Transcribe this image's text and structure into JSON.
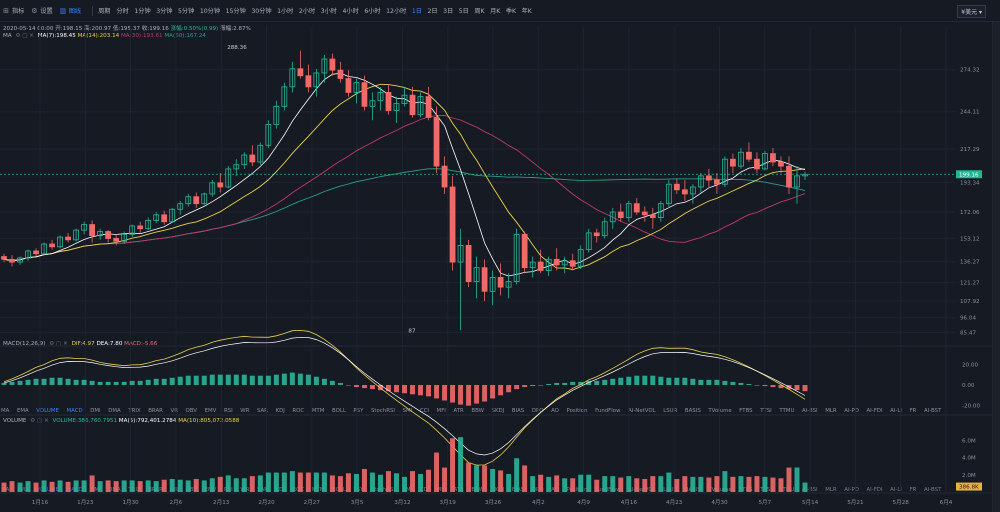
{
  "toolbar": {
    "items": [
      {
        "icon": "indicator-icon",
        "label": "指标"
      },
      {
        "icon": "settings-icon",
        "label": "设置"
      },
      {
        "icon": "chart-icon",
        "label": "图线",
        "active": true
      },
      {
        "icon": "",
        "label": "周期"
      }
    ],
    "timeframes": [
      {
        "label": "分时"
      },
      {
        "label": "1分钟"
      },
      {
        "label": "3分钟"
      },
      {
        "label": "5分钟"
      },
      {
        "label": "10分钟"
      },
      {
        "label": "15分钟"
      },
      {
        "label": "30分钟"
      },
      {
        "label": "1小时"
      },
      {
        "label": "2小时"
      },
      {
        "label": "3小时"
      },
      {
        "label": "4小时"
      },
      {
        "label": "6小时"
      },
      {
        "label": "12小时"
      },
      {
        "label": "1日",
        "active": true
      },
      {
        "label": "2日"
      },
      {
        "label": "3日"
      },
      {
        "label": "5日"
      },
      {
        "label": "周K"
      },
      {
        "label": "月K"
      },
      {
        "label": "季K"
      },
      {
        "label": "年K"
      }
    ],
    "currency": "¥美元 ▾"
  },
  "info": {
    "date": "2020-05-14 00:00",
    "open": "开:198.15",
    "high": "高:200.97",
    "low": "低:195.37",
    "close": "收:199.16",
    "change": "涨幅:0.50%(0.99)",
    "amplitude": "振幅:2.87%"
  },
  "ma_legend": {
    "title": "MA",
    "ma7": "MA(7):198.45",
    "ma14": "MA(14):203.14",
    "ma30": "MA(30):193.61",
    "ma60": "MA(60):167.24"
  },
  "macd_legend": {
    "title": "MACD(12,26,9)",
    "dif": "DIF:4.97",
    "dea": "DEA:7.80",
    "macd": "MACD:-5.66"
  },
  "volume_legend": {
    "title": "VOLUME",
    "vol": "VOLUME:386,760.7951",
    "ma5": "MA(5):792,401.2784",
    "ma10": "MA(10):805,072.0588"
  },
  "indicator_tabs": [
    "MA",
    "EMA",
    "VOLUME",
    "MACD",
    "DMI",
    "DMA",
    "TRIX",
    "BRAR",
    "VR",
    "OBV",
    "EMV",
    "RSI",
    "WR",
    "SAR",
    "KDJ",
    "ROC",
    "MTM",
    "BOLL",
    "PSY",
    "StochRSI",
    "SMI",
    "CCI",
    "MFI",
    "ATR",
    "BBW",
    "SKDJ",
    "BIAS",
    "DPO",
    "AO",
    "Position",
    "FundFlow",
    "AI-NetVOL",
    "LSUR",
    "BASIS",
    "TVolume",
    "FTBS",
    "TTSI",
    "TTMU",
    "AI-BSI",
    "MLR",
    "AI-PD",
    "AI-FDI",
    "AI-LI",
    "FR",
    "AI-BST"
  ],
  "active_indicators": [
    "MACD",
    "VOLUME"
  ],
  "colors": {
    "up": "#2bb59b",
    "down": "#f06a6a",
    "ma7": "#ffffff",
    "ma14": "#e8d24a",
    "ma30": "#c2386b",
    "ma60": "#2a9d8f",
    "accent": "#3b82f6",
    "current_price_bg": "#1fb897"
  },
  "chart_data": {
    "type": "candlestick",
    "price_axis_ticks": [
      274.32,
      244.11,
      217.29,
      193.34,
      172.06,
      153.12,
      136.27,
      121.27,
      107.92,
      96.04,
      85.47
    ],
    "current_price": 199.16,
    "annotations": [
      {
        "label": "288.36",
        "x": "2月13",
        "y": 288.36
      },
      {
        "label": "87",
        "x": "3月12",
        "y": 87
      }
    ],
    "dates": [
      "1月16",
      "1月23",
      "1月30",
      "2月6",
      "2月13",
      "2月20",
      "2月27",
      "3月5",
      "3月12",
      "3月19",
      "3月26",
      "4月2",
      "4月9",
      "4月16",
      "4月23",
      "4月30",
      "5月7",
      "5月14",
      "5月21",
      "5月28",
      "6月4"
    ],
    "macd_axis": [
      20.0,
      0.0,
      -20.0
    ],
    "volume_axis": [
      "6.0M",
      "4.0M",
      "2.0M"
    ],
    "volume_current_label": "386.8K",
    "candles": [
      [
        140,
        142,
        136,
        138
      ],
      [
        138,
        141,
        133,
        136
      ],
      [
        136,
        140,
        134,
        139
      ],
      [
        139,
        145,
        137,
        144
      ],
      [
        144,
        146,
        140,
        142
      ],
      [
        142,
        150,
        141,
        149
      ],
      [
        149,
        152,
        145,
        147
      ],
      [
        147,
        155,
        146,
        154
      ],
      [
        154,
        157,
        150,
        152
      ],
      [
        152,
        160,
        151,
        159
      ],
      [
        159,
        165,
        156,
        163
      ],
      [
        163,
        166,
        150,
        155
      ],
      [
        155,
        160,
        152,
        158
      ],
      [
        158,
        159,
        150,
        153
      ],
      [
        153,
        156,
        148,
        151
      ],
      [
        151,
        158,
        149,
        156
      ],
      [
        156,
        163,
        154,
        162
      ],
      [
        162,
        165,
        157,
        160
      ],
      [
        160,
        168,
        159,
        166
      ],
      [
        166,
        172,
        164,
        170
      ],
      [
        170,
        173,
        163,
        165
      ],
      [
        165,
        175,
        164,
        174
      ],
      [
        174,
        180,
        170,
        178
      ],
      [
        178,
        185,
        176,
        183
      ],
      [
        183,
        186,
        175,
        178
      ],
      [
        178,
        186,
        177,
        185
      ],
      [
        185,
        195,
        183,
        193
      ],
      [
        193,
        200,
        186,
        190
      ],
      [
        190,
        205,
        189,
        203
      ],
      [
        203,
        210,
        198,
        206
      ],
      [
        206,
        215,
        203,
        213
      ],
      [
        213,
        220,
        205,
        208
      ],
      [
        208,
        222,
        206,
        220
      ],
      [
        220,
        238,
        218,
        235
      ],
      [
        235,
        252,
        232,
        248
      ],
      [
        248,
        265,
        245,
        262
      ],
      [
        262,
        280,
        258,
        275
      ],
      [
        275,
        288,
        268,
        270
      ],
      [
        270,
        278,
        258,
        262
      ],
      [
        262,
        275,
        255,
        272
      ],
      [
        272,
        285,
        265,
        282
      ],
      [
        282,
        286,
        270,
        274
      ],
      [
        274,
        280,
        265,
        268
      ],
      [
        268,
        274,
        255,
        258
      ],
      [
        258,
        268,
        250,
        265
      ],
      [
        265,
        270,
        245,
        248
      ],
      [
        248,
        258,
        238,
        252
      ],
      [
        252,
        262,
        245,
        258
      ],
      [
        258,
        264,
        242,
        245
      ],
      [
        245,
        255,
        236,
        250
      ],
      [
        250,
        262,
        248,
        256
      ],
      [
        256,
        262,
        240,
        242
      ],
      [
        242,
        258,
        240,
        255
      ],
      [
        255,
        262,
        238,
        240
      ],
      [
        240,
        248,
        200,
        205
      ],
      [
        205,
        212,
        185,
        190
      ],
      [
        190,
        198,
        130,
        136
      ],
      [
        136,
        160,
        87,
        148
      ],
      [
        148,
        152,
        118,
        122
      ],
      [
        122,
        140,
        110,
        132
      ],
      [
        132,
        138,
        108,
        115
      ],
      [
        115,
        130,
        105,
        125
      ],
      [
        125,
        135,
        112,
        118
      ],
      [
        118,
        128,
        110,
        122
      ],
      [
        122,
        160,
        120,
        156
      ],
      [
        156,
        158,
        128,
        132
      ],
      [
        132,
        140,
        125,
        136
      ],
      [
        136,
        145,
        128,
        130
      ],
      [
        130,
        140,
        126,
        138
      ],
      [
        138,
        146,
        130,
        134
      ],
      [
        134,
        140,
        128,
        137
      ],
      [
        137,
        142,
        130,
        133
      ],
      [
        133,
        148,
        131,
        145
      ],
      [
        145,
        160,
        143,
        157
      ],
      [
        157,
        160,
        150,
        155
      ],
      [
        155,
        168,
        153,
        165
      ],
      [
        165,
        175,
        160,
        172
      ],
      [
        172,
        178,
        165,
        168
      ],
      [
        168,
        180,
        165,
        178
      ],
      [
        178,
        182,
        170,
        172
      ],
      [
        172,
        176,
        165,
        170
      ],
      [
        170,
        175,
        160,
        168
      ],
      [
        168,
        180,
        165,
        178
      ],
      [
        178,
        195,
        175,
        192
      ],
      [
        192,
        196,
        185,
        188
      ],
      [
        188,
        195,
        180,
        185
      ],
      [
        185,
        192,
        178,
        190
      ],
      [
        190,
        200,
        186,
        198
      ],
      [
        198,
        203,
        190,
        195
      ],
      [
        195,
        200,
        185,
        192
      ],
      [
        192,
        212,
        190,
        210
      ],
      [
        210,
        214,
        200,
        205
      ],
      [
        205,
        218,
        203,
        215
      ],
      [
        215,
        222,
        208,
        210
      ],
      [
        210,
        215,
        200,
        203
      ],
      [
        203,
        216,
        202,
        214
      ],
      [
        214,
        218,
        205,
        208
      ],
      [
        208,
        212,
        200,
        205
      ],
      [
        205,
        212,
        185,
        190
      ],
      [
        190,
        205,
        178,
        198
      ],
      [
        198,
        201,
        195,
        199
      ]
    ],
    "macd_hist": [
      2,
      3,
      4,
      5,
      6,
      6,
      7,
      7,
      6,
      5,
      5,
      4,
      3,
      3,
      3,
      3,
      4,
      4,
      5,
      6,
      6,
      7,
      8,
      9,
      9,
      9,
      10,
      10,
      10,
      10,
      10,
      9,
      9,
      9,
      10,
      11,
      12,
      11,
      10,
      8,
      6,
      4,
      2,
      0,
      -2,
      -3,
      -4,
      -5,
      -6,
      -7,
      -8,
      -9,
      -10,
      -11,
      -13,
      -15,
      -17,
      -19,
      -20,
      -18,
      -16,
      -13,
      -10,
      -7,
      -4,
      -2,
      -1,
      0,
      1,
      2,
      2,
      3,
      3,
      4,
      4,
      5,
      6,
      7,
      8,
      9,
      9,
      9,
      8,
      7,
      7,
      7,
      6,
      5,
      5,
      5,
      4,
      3,
      2,
      1,
      0,
      -1,
      -2,
      -3,
      -4,
      -5,
      -6
    ]
  }
}
